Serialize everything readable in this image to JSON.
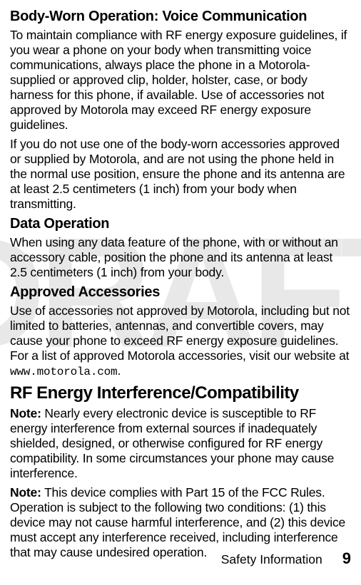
{
  "watermark": "DRAFT",
  "sections": {
    "s1_heading": "Body-Worn Operation: Voice Communication",
    "s1_p1": "To maintain compliance with RF energy exposure guidelines, if you wear a phone on your body when transmitting voice communications, always place the phone in a Motorola-supplied or approved clip, holder, holster, case, or body harness for this phone, if available. Use of accessories not approved by Motorola may exceed RF energy exposure guidelines.",
    "s1_p2": "If you do not use one of the body-worn accessories approved or supplied by Motorola, and are not using the phone held in the normal use position, ensure the phone and its antenna are at least 2.5 centimeters (1 inch) from your body when transmitting.",
    "s2_heading": "Data Operation",
    "s2_p1": "When using any data feature of the phone, with or without an accessory cable, position the phone and its antenna at least 2.5 centimeters (1 inch) from your body.",
    "s3_heading": "Approved Accessories",
    "s3_p1_a": "Use of accessories not approved by Motorola, including but not limited to batteries, antennas, and convertible covers, may cause your phone to exceed RF energy exposure guidelines. For a list of approved Motorola accessories, visit our website at ",
    "s3_p1_url": "www.motorola.com",
    "s3_p1_b": ".",
    "s4_heading": "RF Energy Interference/Compatibility",
    "s4_note_label": "Note:",
    "s4_p1": " Nearly every electronic device is susceptible to RF energy interference from external sources if inadequately shielded, designed, or otherwise configured for RF energy compatibility. In some circumstances your phone may cause interference.",
    "s4_p2": " This device complies with Part 15 of the FCC Rules. Operation is subject to the following two conditions: (1) this device may not cause harmful interference, and (2) this device must accept any interference received, including interference that may cause undesired operation."
  },
  "footer": {
    "label": "Safety Information",
    "page": "9"
  },
  "colors": {
    "text": "#000000",
    "background": "#ffffff",
    "watermark": "#e8e8e8"
  }
}
